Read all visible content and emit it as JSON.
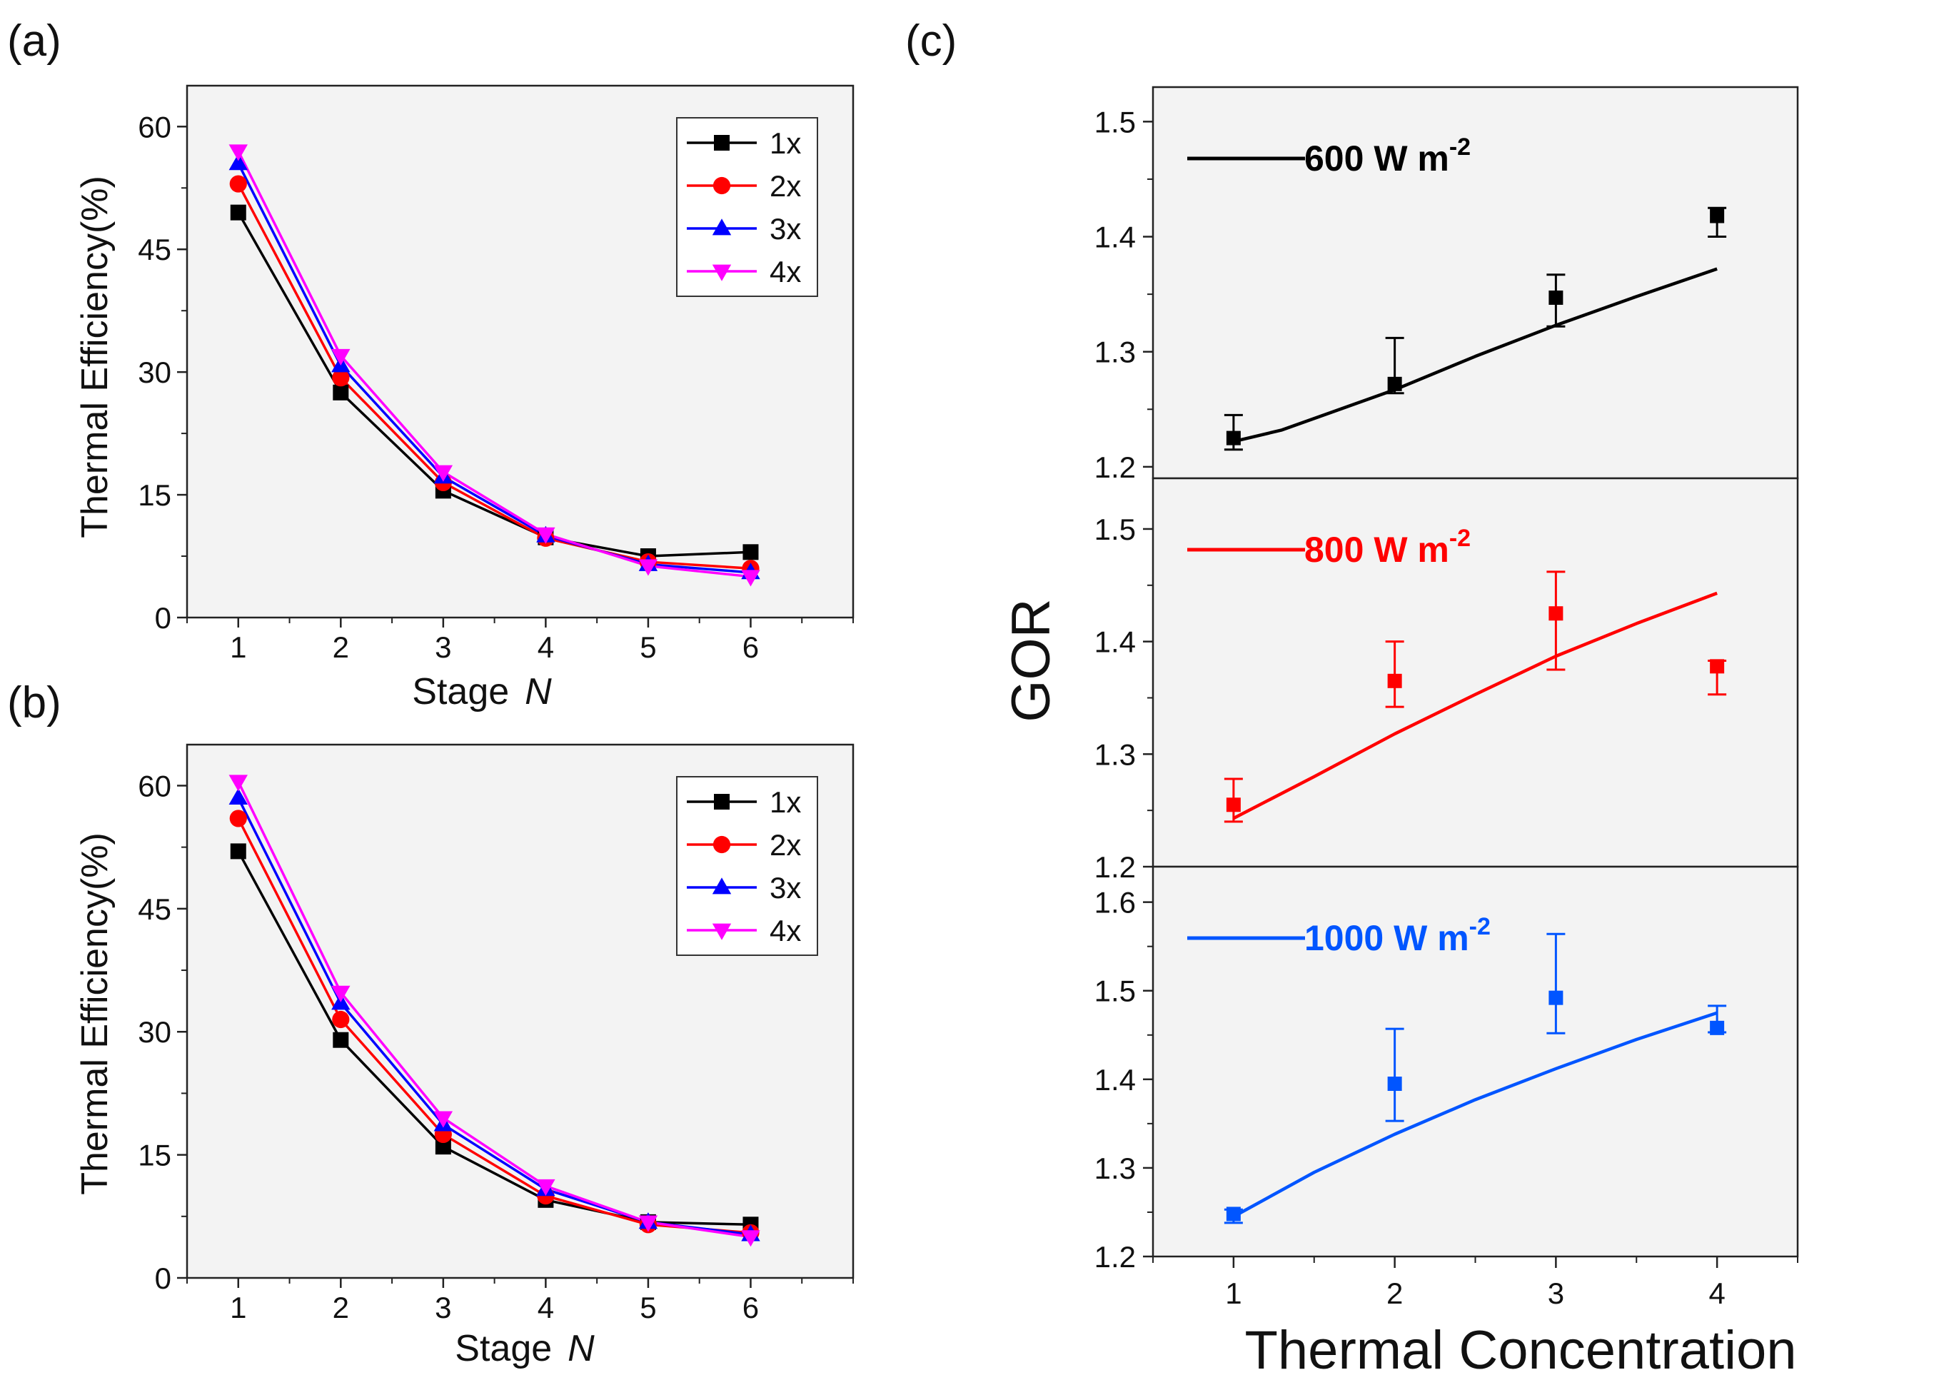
{
  "figure": {
    "panels": [
      {
        "letter": "(a)",
        "chart_data": {
          "type": "line",
          "title": "",
          "xlabel": "Stage",
          "xlabel_italic": "N",
          "ylabel": "Thermal Efficiency(%)",
          "x": [
            1,
            2,
            3,
            4,
            5,
            6
          ],
          "xlim": [
            0.5,
            7.0
          ],
          "ylim": [
            0,
            65
          ],
          "xticks": [
            1,
            2,
            3,
            4,
            5,
            6
          ],
          "yticks": [
            0,
            15,
            30,
            45,
            60
          ],
          "grid": false,
          "legend_position": "top-right",
          "series": [
            {
              "name": "1x",
              "color": "#000000",
              "marker": "square",
              "values": [
                49.5,
                27.5,
                15.5,
                9.8,
                7.5,
                8.0
              ]
            },
            {
              "name": "2x",
              "color": "#ff0000",
              "marker": "circle",
              "values": [
                53.0,
                29.3,
                16.5,
                9.7,
                6.8,
                6.0
              ]
            },
            {
              "name": "3x",
              "color": "#0000ff",
              "marker": "triangle-up",
              "values": [
                55.5,
                30.8,
                17.2,
                10.0,
                6.5,
                5.5
              ]
            },
            {
              "name": "4x",
              "color": "#ff00ff",
              "marker": "triangle-down",
              "values": [
                57.0,
                32.0,
                17.8,
                10.2,
                6.3,
                5.0
              ]
            }
          ]
        }
      },
      {
        "letter": "(b)",
        "chart_data": {
          "type": "line",
          "title": "",
          "xlabel": "Stage",
          "xlabel_italic": "N",
          "ylabel": "Thermal Efficiency(%)",
          "x": [
            1,
            2,
            3,
            4,
            5,
            6
          ],
          "xlim": [
            0.5,
            7.0
          ],
          "ylim": [
            0,
            65
          ],
          "xticks": [
            1,
            2,
            3,
            4,
            5,
            6
          ],
          "yticks": [
            0,
            15,
            30,
            45,
            60
          ],
          "grid": false,
          "legend_position": "top-right",
          "series": [
            {
              "name": "1x",
              "color": "#000000",
              "marker": "square",
              "values": [
                52.0,
                29.0,
                16.0,
                9.5,
                6.8,
                6.5
              ]
            },
            {
              "name": "2x",
              "color": "#ff0000",
              "marker": "circle",
              "values": [
                56.0,
                31.5,
                17.5,
                10.0,
                6.5,
                5.5
              ]
            },
            {
              "name": "3x",
              "color": "#0000ff",
              "marker": "triangle-up",
              "values": [
                58.5,
                33.5,
                18.7,
                10.8,
                6.8,
                5.3
              ]
            },
            {
              "name": "4x",
              "color": "#ff00ff",
              "marker": "triangle-down",
              "values": [
                60.5,
                34.8,
                19.5,
                11.2,
                6.8,
                5.0
              ]
            }
          ]
        }
      },
      {
        "letter": "(c)",
        "chart_data": {
          "type": "line",
          "xlabel": "Thermal Concentration",
          "ylabel": "GOR",
          "xlim": [
            0.5,
            4.5
          ],
          "xticks": [
            1,
            2,
            3,
            4
          ],
          "grid": false,
          "subplots": [
            {
              "annotation": "600 W m",
              "annotation_sup": "-2",
              "color": "#000000",
              "ylim": [
                1.19,
                1.53
              ],
              "yticks": [
                1.2,
                1.3,
                1.4,
                1.5
              ],
              "measured": {
                "x": [
                  1,
                  2,
                  3,
                  4
                ],
                "y": [
                  1.225,
                  1.272,
                  1.347,
                  1.418
                ],
                "err_low": [
                  0.01,
                  0.008,
                  0.025,
                  0.018
                ],
                "err_high": [
                  0.02,
                  0.04,
                  0.02,
                  0.007
                ]
              },
              "model": {
                "x": [
                  1.0,
                  1.3,
                  1.6,
                  2.0,
                  2.5,
                  3.0,
                  3.5,
                  4.0
                ],
                "y": [
                  1.222,
                  1.232,
                  1.247,
                  1.267,
                  1.296,
                  1.323,
                  1.348,
                  1.372
                ]
              }
            },
            {
              "annotation": "800 W m",
              "annotation_sup": "-2",
              "color": "#ff0000",
              "ylim": [
                1.2,
                1.545
              ],
              "yticks": [
                1.2,
                1.3,
                1.4,
                1.5
              ],
              "measured": {
                "x": [
                  1,
                  2,
                  3,
                  4
                ],
                "y": [
                  1.255,
                  1.365,
                  1.425,
                  1.378
                ],
                "err_low": [
                  0.015,
                  0.023,
                  0.05,
                  0.025
                ],
                "err_high": [
                  0.023,
                  0.035,
                  0.037,
                  0.005
                ]
              },
              "model": {
                "x": [
                  1.0,
                  1.5,
                  2.0,
                  2.5,
                  3.0,
                  3.5,
                  4.0
                ],
                "y": [
                  1.243,
                  1.28,
                  1.318,
                  1.353,
                  1.387,
                  1.416,
                  1.443
                ]
              }
            },
            {
              "annotation": "1000 W m",
              "annotation_sup": "-2",
              "color": "#0055ff",
              "ylim": [
                1.2,
                1.64
              ],
              "yticks": [
                1.2,
                1.3,
                1.4,
                1.5,
                1.6
              ],
              "measured": {
                "x": [
                  1,
                  2,
                  3,
                  4
                ],
                "y": [
                  1.248,
                  1.395,
                  1.492,
                  1.458
                ],
                "err_low": [
                  0.01,
                  0.042,
                  0.04,
                  0.005
                ],
                "err_high": [
                  0.005,
                  0.062,
                  0.072,
                  0.025
                ]
              },
              "model": {
                "x": [
                  1.0,
                  1.5,
                  2.0,
                  2.5,
                  3.0,
                  3.5,
                  4.0
                ],
                "y": [
                  1.245,
                  1.295,
                  1.338,
                  1.377,
                  1.412,
                  1.445,
                  1.475
                ]
              }
            }
          ]
        }
      }
    ]
  }
}
